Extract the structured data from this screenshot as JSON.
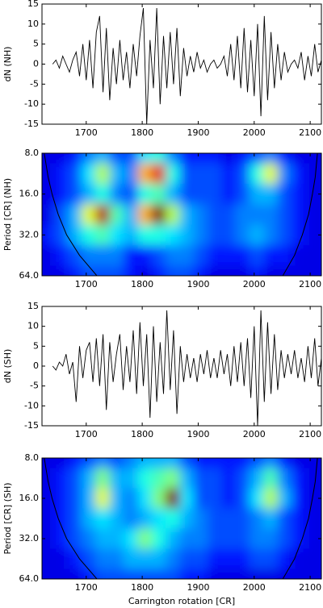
{
  "chart_data": [
    {
      "type": "line",
      "ylabel": "dN (NH)",
      "color": "#000000",
      "x": [
        1640,
        1646,
        1652,
        1658,
        1664,
        1670,
        1676,
        1682,
        1688,
        1694,
        1700,
        1706,
        1712,
        1718,
        1724,
        1730,
        1736,
        1742,
        1748,
        1754,
        1760,
        1766,
        1772,
        1778,
        1784,
        1790,
        1796,
        1802,
        1808,
        1814,
        1820,
        1826,
        1832,
        1838,
        1844,
        1850,
        1856,
        1862,
        1868,
        1874,
        1880,
        1886,
        1892,
        1898,
        1904,
        1910,
        1916,
        1922,
        1928,
        1934,
        1940,
        1946,
        1952,
        1958,
        1964,
        1970,
        1976,
        1982,
        1988,
        1994,
        2000,
        2006,
        2012,
        2018,
        2024,
        2030,
        2036,
        2042,
        2048,
        2054,
        2060,
        2066,
        2072,
        2078,
        2084,
        2090,
        2096,
        2102,
        2108,
        2114,
        2120
      ],
      "values": [
        0,
        1,
        -1,
        2,
        0,
        -2,
        1,
        3,
        -3,
        5,
        -4,
        6,
        -6,
        8,
        12,
        -7,
        9,
        -9,
        4,
        -5,
        6,
        -4,
        3,
        -6,
        5,
        -3,
        7,
        14,
        -15,
        6,
        -6,
        14,
        -10,
        7,
        -6,
        8,
        -5,
        9,
        -8,
        4,
        -3,
        2,
        -2,
        3,
        -1,
        1,
        -2,
        0,
        1,
        -1,
        0,
        2,
        -3,
        5,
        -4,
        7,
        -6,
        9,
        -7,
        6,
        -8,
        10,
        -13,
        12,
        -9,
        8,
        -6,
        5,
        -4,
        3,
        -2,
        0,
        1,
        -1,
        3,
        -4,
        2,
        -3,
        5,
        -2,
        1
      ],
      "xlim": [
        1621,
        2120
      ],
      "xticks": [
        1700,
        1800,
        1900,
        2000,
        2100
      ],
      "ylim": [
        -15,
        15
      ],
      "yticks": [
        -15,
        -10,
        -5,
        0,
        5,
        10,
        15
      ]
    },
    {
      "type": "heatmap",
      "ylabel": "Period [CR] (NH)",
      "colormap": "jet",
      "log_y": true,
      "coi_color": "#000000",
      "x": [
        1630,
        1655,
        1680,
        1705,
        1730,
        1755,
        1780,
        1805,
        1830,
        1855,
        1880,
        1905,
        1930,
        1955,
        1980,
        2005,
        2030,
        2055,
        2080,
        2105
      ],
      "y": [
        8,
        11.3,
        16,
        22.6,
        32,
        45.3,
        64
      ],
      "z": [
        [
          0.1,
          0.1,
          0.15,
          0.25,
          0.3,
          0.2,
          0.2,
          0.35,
          0.4,
          0.25,
          0.15,
          0.15,
          0.15,
          0.1,
          0.15,
          0.2,
          0.25,
          0.15,
          0.1,
          0.1
        ],
        [
          0.1,
          0.15,
          0.2,
          0.35,
          0.55,
          0.3,
          0.25,
          0.7,
          0.9,
          0.4,
          0.2,
          0.2,
          0.2,
          0.15,
          0.2,
          0.4,
          0.6,
          0.25,
          0.15,
          0.1
        ],
        [
          0.1,
          0.15,
          0.2,
          0.3,
          0.4,
          0.25,
          0.2,
          0.4,
          0.45,
          0.3,
          0.2,
          0.2,
          0.2,
          0.15,
          0.2,
          0.3,
          0.3,
          0.2,
          0.15,
          0.1
        ],
        [
          0.1,
          0.2,
          0.3,
          0.6,
          0.95,
          0.45,
          0.3,
          0.7,
          1.0,
          0.55,
          0.3,
          0.25,
          0.2,
          0.2,
          0.25,
          0.25,
          0.25,
          0.2,
          0.15,
          0.1
        ],
        [
          0.15,
          0.2,
          0.3,
          0.4,
          0.45,
          0.35,
          0.3,
          0.4,
          0.4,
          0.35,
          0.3,
          0.25,
          0.2,
          0.2,
          0.25,
          0.3,
          0.25,
          0.2,
          0.15,
          0.1
        ],
        [
          0.1,
          0.15,
          0.2,
          0.25,
          0.25,
          0.25,
          0.15,
          0.15,
          0.2,
          0.25,
          0.25,
          0.2,
          0.15,
          0.15,
          0.15,
          0.2,
          0.15,
          0.15,
          0.1,
          0.1
        ],
        [
          0.1,
          0.1,
          0.15,
          0.2,
          0.2,
          0.2,
          0.15,
          0.1,
          0.15,
          0.2,
          0.2,
          0.15,
          0.1,
          0.1,
          0.1,
          0.15,
          0.1,
          0.1,
          0.1,
          0.1
        ]
      ],
      "coi_left": {
        "x": [
          1625,
          1632,
          1639,
          1650,
          1665,
          1688,
          1719
        ],
        "period": [
          8,
          12,
          16,
          22.6,
          32,
          45.3,
          64
        ]
      },
      "coi_right": {
        "x": [
          2113,
          2109,
          2104,
          2097,
          2086,
          2072,
          2051
        ],
        "period": [
          8,
          12,
          16,
          22.6,
          32,
          45.3,
          64
        ]
      },
      "xlim": [
        1621,
        2120
      ],
      "xticks": [
        1700,
        1800,
        1900,
        2000,
        2100
      ],
      "ylim": [
        8,
        64
      ],
      "yticks": [
        {
          "value": 8,
          "label": "8.0"
        },
        {
          "value": 16,
          "label": "16.0"
        },
        {
          "value": 32,
          "label": "32.0"
        },
        {
          "value": 64,
          "label": "64.0"
        }
      ]
    },
    {
      "type": "line",
      "ylabel": "dN (SH)",
      "color": "#000000",
      "x": [
        1640,
        1646,
        1652,
        1658,
        1664,
        1670,
        1676,
        1682,
        1688,
        1694,
        1700,
        1706,
        1712,
        1718,
        1724,
        1730,
        1736,
        1742,
        1748,
        1754,
        1760,
        1766,
        1772,
        1778,
        1784,
        1790,
        1796,
        1802,
        1808,
        1814,
        1820,
        1826,
        1832,
        1838,
        1844,
        1850,
        1856,
        1862,
        1868,
        1874,
        1880,
        1886,
        1892,
        1898,
        1904,
        1910,
        1916,
        1922,
        1928,
        1934,
        1940,
        1946,
        1952,
        1958,
        1964,
        1970,
        1976,
        1982,
        1988,
        1994,
        2000,
        2006,
        2012,
        2018,
        2024,
        2030,
        2036,
        2042,
        2048,
        2054,
        2060,
        2066,
        2072,
        2078,
        2084,
        2090,
        2096,
        2102,
        2108,
        2114,
        2120
      ],
      "values": [
        0,
        -1,
        1,
        0,
        3,
        -2,
        1,
        -9,
        5,
        -3,
        4,
        6,
        -4,
        7,
        -5,
        8,
        -11,
        6,
        -4,
        3,
        8,
        -6,
        5,
        -4,
        9,
        -7,
        11,
        -5,
        8,
        -13,
        10,
        -9,
        6,
        -7,
        14,
        -6,
        9,
        -12,
        5,
        -4,
        3,
        -3,
        2,
        -4,
        3,
        -2,
        4,
        -3,
        2,
        -3,
        4,
        -2,
        3,
        -5,
        5,
        -4,
        6,
        -5,
        7,
        -8,
        10,
        -15,
        14,
        -9,
        11,
        -7,
        8,
        -6,
        4,
        -3,
        3,
        -2,
        4,
        -3,
        2,
        -4,
        5,
        -3,
        7,
        -5,
        2
      ],
      "xlim": [
        1621,
        2120
      ],
      "xticks": [
        1700,
        1800,
        1900,
        2000,
        2100
      ],
      "ylim": [
        -15,
        15
      ],
      "yticks": [
        -15,
        -10,
        -5,
        0,
        5,
        10,
        15
      ]
    },
    {
      "type": "heatmap",
      "ylabel": "Period [CR] (SH)",
      "xlabel": "Carrington rotation [CR]",
      "colormap": "jet",
      "log_y": true,
      "coi_color": "#000000",
      "x": [
        1630,
        1655,
        1680,
        1705,
        1730,
        1755,
        1780,
        1805,
        1830,
        1855,
        1880,
        1905,
        1930,
        1955,
        1980,
        2005,
        2030,
        2055,
        2080,
        2105
      ],
      "y": [
        8,
        11.3,
        16,
        22.6,
        32,
        45.3,
        64
      ],
      "z": [
        [
          0.1,
          0.1,
          0.15,
          0.2,
          0.25,
          0.2,
          0.25,
          0.3,
          0.3,
          0.3,
          0.2,
          0.15,
          0.15,
          0.15,
          0.15,
          0.2,
          0.25,
          0.15,
          0.1,
          0.1
        ],
        [
          0.1,
          0.15,
          0.2,
          0.3,
          0.5,
          0.3,
          0.3,
          0.4,
          0.45,
          0.5,
          0.3,
          0.2,
          0.2,
          0.15,
          0.2,
          0.3,
          0.45,
          0.25,
          0.15,
          0.1
        ],
        [
          0.1,
          0.15,
          0.2,
          0.3,
          0.6,
          0.3,
          0.25,
          0.35,
          0.5,
          1.0,
          0.35,
          0.2,
          0.2,
          0.15,
          0.2,
          0.35,
          0.55,
          0.3,
          0.15,
          0.1
        ],
        [
          0.1,
          0.15,
          0.2,
          0.3,
          0.35,
          0.3,
          0.25,
          0.3,
          0.35,
          0.4,
          0.3,
          0.25,
          0.2,
          0.2,
          0.2,
          0.25,
          0.3,
          0.2,
          0.15,
          0.1
        ],
        [
          0.1,
          0.15,
          0.2,
          0.25,
          0.3,
          0.3,
          0.35,
          0.5,
          0.4,
          0.3,
          0.25,
          0.25,
          0.2,
          0.2,
          0.2,
          0.25,
          0.25,
          0.2,
          0.15,
          0.1
        ],
        [
          0.1,
          0.1,
          0.15,
          0.2,
          0.25,
          0.25,
          0.3,
          0.3,
          0.3,
          0.25,
          0.2,
          0.2,
          0.15,
          0.15,
          0.15,
          0.2,
          0.2,
          0.15,
          0.1,
          0.1
        ],
        [
          0.1,
          0.1,
          0.1,
          0.15,
          0.2,
          0.2,
          0.2,
          0.2,
          0.2,
          0.2,
          0.15,
          0.15,
          0.1,
          0.1,
          0.1,
          0.1,
          0.1,
          0.1,
          0.1,
          0.1
        ]
      ],
      "coi_left": {
        "x": [
          1625,
          1632,
          1639,
          1650,
          1665,
          1688,
          1719
        ],
        "period": [
          8,
          12,
          16,
          22.6,
          32,
          45.3,
          64
        ]
      },
      "coi_right": {
        "x": [
          2113,
          2109,
          2104,
          2097,
          2086,
          2072,
          2051
        ],
        "period": [
          8,
          12,
          16,
          22.6,
          32,
          45.3,
          64
        ]
      },
      "xlim": [
        1621,
        2120
      ],
      "xticks": [
        1700,
        1800,
        1900,
        2000,
        2100
      ],
      "ylim": [
        8,
        64
      ],
      "yticks": [
        {
          "value": 8,
          "label": "8.0"
        },
        {
          "value": 16,
          "label": "16.0"
        },
        {
          "value": 32,
          "label": "32.0"
        },
        {
          "value": 64,
          "label": "64.0"
        }
      ]
    }
  ]
}
